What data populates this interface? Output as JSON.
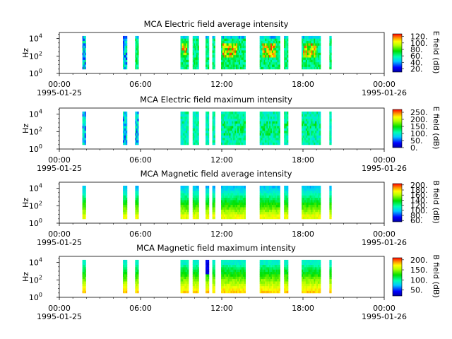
{
  "figure": {
    "background": "#ffffff"
  },
  "chart_data": [
    {
      "type": "heatmap",
      "title": "MCA  Electric field average intensity",
      "ylabel": "Hz",
      "yscale": "log",
      "yticks": [
        "10^4",
        "10^2",
        "10^0"
      ],
      "xtick_labels": [
        "00:00",
        "06:00",
        "12:00",
        "18:00",
        "00:00"
      ],
      "xtick_hours": [
        0,
        6,
        12,
        18,
        24
      ],
      "x_date_labels": [
        "1995-01-25",
        "1995-01-26"
      ],
      "xlim_hours": [
        0,
        24
      ],
      "ylim_log10": [
        0,
        4.7
      ],
      "colorbar": {
        "label": "E field (dB)",
        "ticks": [
          "120.",
          "100.",
          "80.",
          "60.",
          "40.",
          "20."
        ],
        "tick_values": [
          120,
          100,
          80,
          60,
          40,
          20
        ],
        "range": [
          10,
          128
        ]
      },
      "data_segments_hours": [
        [
          1.7,
          1.95
        ],
        [
          4.7,
          5.0
        ],
        [
          5.6,
          5.85
        ],
        [
          8.95,
          9.55
        ],
        [
          9.85,
          10.3
        ],
        [
          10.8,
          11.05
        ],
        [
          11.3,
          11.5
        ],
        [
          11.95,
          13.75
        ],
        [
          14.8,
          16.3
        ],
        [
          16.6,
          16.9
        ],
        [
          17.9,
          19.3
        ],
        [
          19.95,
          20.1
        ]
      ],
      "data_ylim_log10": [
        0.5,
        4.3
      ]
    },
    {
      "type": "heatmap",
      "title": "MCA  Electric field maximum intensity",
      "ylabel": "Hz",
      "yscale": "log",
      "yticks": [
        "10^4",
        "10^2",
        "10^0"
      ],
      "xtick_labels": [
        "00:00",
        "06:00",
        "12:00",
        "18:00",
        "00:00"
      ],
      "xtick_hours": [
        0,
        6,
        12,
        18,
        24
      ],
      "x_date_labels": [
        "1995-01-25",
        "1995-01-26"
      ],
      "xlim_hours": [
        0,
        24
      ],
      "ylim_log10": [
        0,
        4.7
      ],
      "colorbar": {
        "label": "E field (dB)",
        "ticks": [
          "250.",
          "200.",
          "150.",
          "100.",
          "50.",
          "0."
        ],
        "tick_values": [
          250,
          200,
          150,
          100,
          50,
          0
        ],
        "range": [
          0,
          270
        ]
      },
      "data_segments_hours": [
        [
          1.7,
          1.95
        ],
        [
          4.7,
          5.0
        ],
        [
          5.6,
          5.85
        ],
        [
          8.95,
          9.55
        ],
        [
          9.85,
          10.3
        ],
        [
          10.8,
          11.05
        ],
        [
          11.3,
          11.5
        ],
        [
          11.95,
          13.75
        ],
        [
          14.8,
          16.3
        ],
        [
          16.6,
          16.9
        ],
        [
          17.9,
          19.3
        ],
        [
          19.95,
          20.1
        ]
      ],
      "data_ylim_log10": [
        0.5,
        4.3
      ]
    },
    {
      "type": "heatmap",
      "title": "MCA  Magnetic field average intensity",
      "ylabel": "Hz",
      "yscale": "log",
      "yticks": [
        "10^4",
        "10^2",
        "10^0"
      ],
      "xtick_labels": [
        "00:00",
        "06:00",
        "12:00",
        "18:00",
        "00:00"
      ],
      "xtick_hours": [
        0,
        6,
        12,
        18,
        24
      ],
      "x_date_labels": [
        "1995-01-25",
        "1995-01-26"
      ],
      "xlim_hours": [
        0,
        24
      ],
      "ylim_log10": [
        0,
        4.7
      ],
      "colorbar": {
        "label": "B field (dB)",
        "ticks": [
          "200.",
          "180.",
          "160.",
          "140.",
          "120.",
          "100.",
          "80.",
          "60."
        ],
        "tick_values": [
          200,
          180,
          160,
          140,
          120,
          100,
          80,
          60
        ],
        "range": [
          55,
          205
        ]
      },
      "data_segments_hours": [
        [
          1.7,
          1.95
        ],
        [
          4.7,
          5.0
        ],
        [
          5.6,
          5.85
        ],
        [
          8.95,
          9.55
        ],
        [
          9.85,
          10.3
        ],
        [
          10.8,
          11.05
        ],
        [
          11.3,
          11.5
        ],
        [
          11.95,
          13.75
        ],
        [
          14.8,
          16.3
        ],
        [
          16.6,
          16.9
        ],
        [
          17.9,
          19.3
        ],
        [
          19.95,
          20.1
        ]
      ],
      "data_ylim_log10": [
        0.5,
        4.3
      ]
    },
    {
      "type": "heatmap",
      "title": "MCA  Magnetic field maximum intensity",
      "ylabel": "Hz",
      "yscale": "log",
      "yticks": [
        "10^4",
        "10^2",
        "10^0"
      ],
      "xtick_labels": [
        "00:00",
        "06:00",
        "12:00",
        "18:00",
        "00:00"
      ],
      "xtick_hours": [
        0,
        6,
        12,
        18,
        24
      ],
      "x_date_labels": [
        "1995-01-25",
        "1995-01-26"
      ],
      "xlim_hours": [
        0,
        24
      ],
      "ylim_log10": [
        0,
        4.7
      ],
      "colorbar": {
        "label": "B field (dB)",
        "ticks": [
          "200.",
          "150.",
          "100.",
          "50."
        ],
        "tick_values": [
          200,
          150,
          100,
          50
        ],
        "range": [
          20,
          210
        ]
      },
      "data_segments_hours": [
        [
          1.7,
          1.95
        ],
        [
          4.7,
          5.0
        ],
        [
          5.6,
          5.85
        ],
        [
          8.95,
          9.55
        ],
        [
          9.85,
          10.3
        ],
        [
          10.8,
          11.05
        ],
        [
          11.3,
          11.5
        ],
        [
          11.95,
          13.75
        ],
        [
          14.8,
          16.3
        ],
        [
          16.6,
          16.9
        ],
        [
          17.9,
          19.3
        ],
        [
          19.95,
          20.1
        ]
      ],
      "data_ylim_log10": [
        0.5,
        4.3
      ]
    }
  ]
}
